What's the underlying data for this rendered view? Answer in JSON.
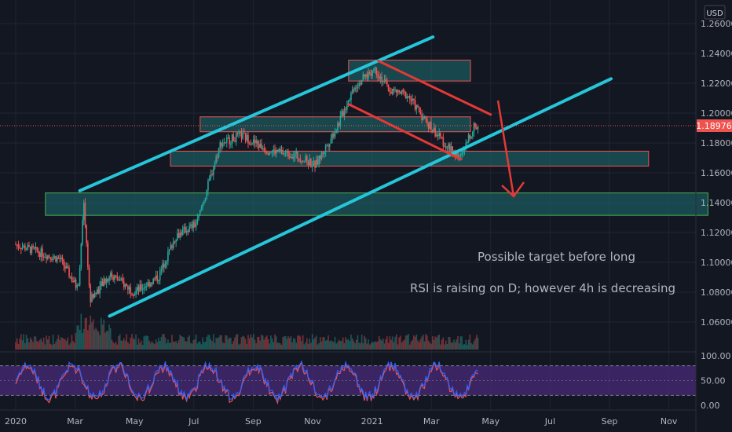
{
  "currency": "USD",
  "price_label": "1.18976",
  "notes": {
    "target": "Possible target before long",
    "rsi": "RSI is raising on D; however 4h is decreasing"
  },
  "colors": {
    "background": "#131722",
    "up": "#26a69a",
    "down": "#ef5350",
    "trendline": "#26c6da",
    "zone_fill": "#1e6f72",
    "zone_border_red": "#ef5350",
    "zone_border_green": "#4caf50",
    "arrow": "#e53935",
    "rsi_band": "#4a2a78",
    "rsi_line1": "#2962ff",
    "rsi_line2": "#ef5350",
    "price_badge": "#ef5350"
  },
  "chart_data": {
    "type": "candlestick",
    "instrument_currency": "USD",
    "x_ticks": [
      "2020",
      "Mar",
      "May",
      "Jul",
      "Sep",
      "Nov",
      "2021",
      "Mar",
      "May",
      "Jul",
      "Sep",
      "Nov"
    ],
    "y_ticks": [
      "1.26000",
      "1.24000",
      "1.22000",
      "1.20000",
      "1.18000",
      "1.16000",
      "1.14000",
      "1.12000",
      "1.10000",
      "1.08000",
      "1.06000"
    ],
    "ylim": [
      1.05,
      1.265
    ],
    "last_price": 1.18976,
    "rsi_ticks": [
      "100.00",
      "50.00",
      "0.00"
    ],
    "rsi_band": [
      20,
      80
    ],
    "key_prices": {
      "march_2020_high": 1.148,
      "march_2020_low": 1.066,
      "early_2021_high": 1.235,
      "april_2021_low": 1.17
    },
    "zones": [
      {
        "from": "2020-12",
        "to": "2021-04",
        "low": 1.2215,
        "high": 1.2355,
        "border": "red"
      },
      {
        "from": "2020-07",
        "to": "2021-04",
        "low": 1.1875,
        "high": 1.1975,
        "border": "red"
      },
      {
        "from": "2020-06",
        "to": "2021-10",
        "low": 1.1645,
        "high": 1.1745,
        "border": "red"
      },
      {
        "from": "2020-02",
        "to": "2021-12",
        "low": 1.1315,
        "high": 1.1465,
        "border": "green"
      }
    ],
    "trendlines": [
      {
        "from": [
          "2020-03",
          1.148
        ],
        "to": [
          "2021-03",
          1.251
        ],
        "color": "cyan"
      },
      {
        "from": [
          "2020-04",
          1.064
        ],
        "to": [
          "2021-09",
          1.223
        ],
        "color": "cyan"
      },
      {
        "from": [
          "2021-01",
          1.235
        ],
        "to": [
          "2021-05",
          1.199
        ],
        "color": "red"
      },
      {
        "from": [
          "2020-12",
          1.206
        ],
        "to": [
          "2021-04",
          1.169
        ],
        "color": "red"
      }
    ],
    "projection_arrow": {
      "from": [
        "2021-06",
        1.203
      ],
      "to": [
        "2021-07",
        1.143
      ]
    }
  }
}
